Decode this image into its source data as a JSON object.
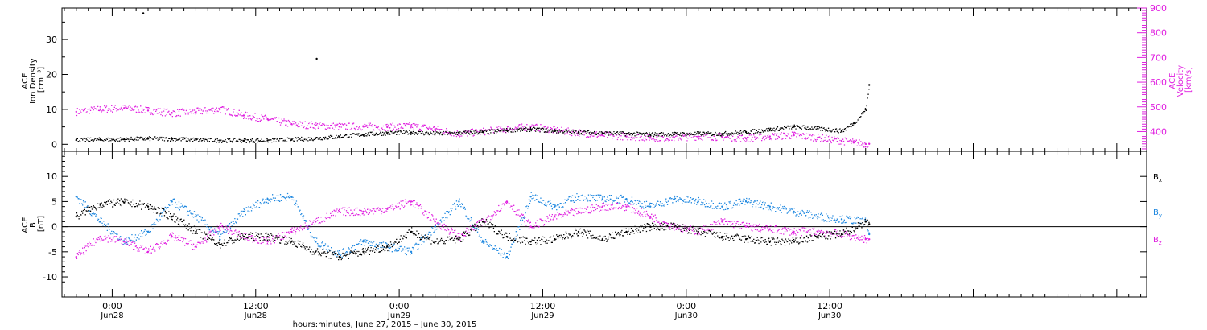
{
  "chart_data": [
    {
      "type": "scatter",
      "panel": "ion-density-velocity",
      "ylabel_lines": [
        "ACE",
        "Ion Density",
        "[cm⁻³]"
      ],
      "ylim": [
        -2,
        39
      ],
      "yticks": [
        "0",
        "10",
        "20",
        "30"
      ],
      "ytick_values": [
        0,
        10,
        20,
        30
      ],
      "y2label_lines": [
        "ACE",
        "Velocity",
        "[km/s]"
      ],
      "y2lim": [
        320,
        900
      ],
      "y2ticks": [
        "400",
        "500",
        "600",
        "700",
        "800",
        "900"
      ],
      "y2tick_values": [
        400,
        500,
        600,
        700,
        800,
        900
      ],
      "series": [
        {
          "axis": "left",
          "color": "#000000",
          "x": [
            -3,
            -1,
            1,
            3,
            5,
            7,
            9,
            11,
            13,
            15,
            17,
            19,
            21,
            23,
            25,
            27,
            29,
            31,
            33,
            35,
            37,
            39,
            41,
            43,
            45,
            47,
            49,
            51,
            53,
            55,
            57,
            59,
            61,
            62,
            63,
            63.3
          ],
          "values": [
            1.2,
            1.3,
            1.4,
            1.6,
            1.5,
            1.3,
            1.1,
            1.0,
            1.1,
            1.3,
            1.7,
            2.2,
            2.8,
            3.2,
            3.4,
            3.0,
            3.2,
            3.5,
            4.0,
            4.3,
            3.8,
            3.5,
            3.2,
            3.0,
            2.8,
            2.9,
            3.0,
            3.0,
            3.5,
            4.2,
            5.0,
            4.5,
            3.8,
            6.0,
            10.0,
            17.0
          ]
        },
        {
          "axis": "right",
          "color": "#e020e0",
          "x": [
            -3,
            -1,
            1,
            3,
            5,
            7,
            9,
            11,
            13,
            15,
            17,
            19,
            21,
            23,
            25,
            27,
            29,
            31,
            33,
            35,
            37,
            39,
            41,
            43,
            45,
            47,
            49,
            51,
            53,
            55,
            57,
            59,
            61,
            62,
            63,
            63.3
          ],
          "values": [
            480,
            490,
            495,
            485,
            475,
            480,
            490,
            465,
            450,
            430,
            425,
            420,
            420,
            418,
            422,
            410,
            390,
            400,
            410,
            420,
            405,
            395,
            385,
            380,
            375,
            375,
            380,
            378,
            372,
            380,
            385,
            375,
            362,
            355,
            350,
            350
          ]
        }
      ],
      "outliers": [
        {
          "x": 2.6,
          "y": 37.5
        },
        {
          "x": 17.1,
          "y": 24.5
        }
      ]
    },
    {
      "type": "scatter",
      "panel": "magnetic-field",
      "ylabel_lines": [
        "ACE",
        "B",
        "[nT]"
      ],
      "ylim": [
        -14,
        15
      ],
      "yticks": [
        "-10",
        "-5",
        "0",
        "5",
        "10"
      ],
      "ytick_values": [
        -10,
        -5,
        0,
        5,
        10
      ],
      "zero_line": true,
      "legend_position": "right",
      "series": [
        {
          "name": "Bx",
          "legend_base": "B",
          "legend_sub": "x",
          "legend_value": 10,
          "color": "#000000",
          "x": [
            -3,
            -1,
            1,
            3,
            5,
            7,
            9,
            11,
            13,
            15,
            17,
            19,
            21,
            23,
            25,
            27,
            29,
            31,
            33,
            35,
            37,
            39,
            41,
            43,
            45,
            47,
            49,
            51,
            53,
            55,
            57,
            59,
            61,
            63,
            63.3
          ],
          "values": [
            2,
            4.5,
            4.8,
            4,
            2,
            -1,
            -3.5,
            -2,
            -2,
            -3,
            -5,
            -6,
            -5,
            -4,
            -1,
            -3,
            -2.5,
            1,
            -2,
            -3,
            -2.5,
            -1,
            -2.5,
            -1,
            0,
            0,
            -1,
            -2,
            -2.5,
            -3,
            -3,
            -2,
            -1.5,
            1,
            0.5
          ]
        },
        {
          "name": "By",
          "legend_base": "B",
          "legend_sub": "y",
          "legend_value": 3,
          "color": "#1f88e0",
          "x": [
            -3,
            -1,
            1,
            3,
            5,
            7,
            9,
            11,
            13,
            15,
            17,
            19,
            21,
            23,
            25,
            27,
            29,
            31,
            33,
            35,
            37,
            39,
            41,
            43,
            45,
            47,
            49,
            51,
            53,
            55,
            57,
            59,
            61,
            63,
            63.3
          ],
          "values": [
            6,
            1,
            -3,
            -1,
            5,
            2,
            -2,
            3,
            5.5,
            6,
            -3,
            -5.5,
            -3,
            -4,
            -5,
            0,
            5,
            -3,
            -6,
            6,
            4,
            6,
            5.5,
            5.5,
            4,
            5.5,
            5,
            4,
            5,
            4,
            3,
            2,
            1.5,
            1,
            -1.5
          ]
        },
        {
          "name": "Bz",
          "legend_base": "B",
          "legend_sub": "z",
          "legend_value": -2.5,
          "color": "#e020e0",
          "x": [
            -3,
            -1,
            1,
            3,
            5,
            7,
            9,
            11,
            13,
            15,
            17,
            19,
            21,
            23,
            25,
            27,
            29,
            31,
            33,
            35,
            37,
            39,
            41,
            43,
            45,
            47,
            49,
            51,
            53,
            55,
            57,
            59,
            61,
            63,
            63.3
          ],
          "values": [
            -6,
            -2,
            -3,
            -5,
            -2,
            -4,
            0,
            -2,
            -3,
            -1,
            1,
            3,
            3,
            3.5,
            5,
            1,
            -2,
            1,
            5,
            0,
            2,
            3,
            4,
            4,
            2,
            0,
            -1,
            1,
            0,
            -0.5,
            -1,
            -1,
            -1.5,
            -2.5,
            -2.5
          ]
        }
      ]
    }
  ],
  "x_axis": {
    "xlim": [
      -4.2,
      86.5
    ],
    "ticks": [
      {
        "x": 0,
        "time": "0:00",
        "date": "Jun28"
      },
      {
        "x": 12,
        "time": "12:00",
        "date": "Jun28"
      },
      {
        "x": 24,
        "time": "0:00",
        "date": "Jun29"
      },
      {
        "x": 36,
        "time": "12:00",
        "date": "Jun29"
      },
      {
        "x": 48,
        "time": "0:00",
        "date": "Jun30"
      },
      {
        "x": 60,
        "time": "12:00",
        "date": "Jun30"
      }
    ],
    "title": "hours:minutes, June 27, 2015 – June 30, 2015"
  },
  "colors": {
    "axis": "#000000",
    "density": "#000000",
    "velocity": "#e020e0",
    "bx": "#000000",
    "by": "#1f88e0",
    "bz": "#e020e0"
  }
}
